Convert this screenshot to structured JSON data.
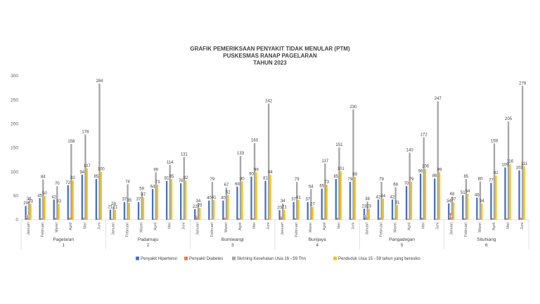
{
  "chart_data": {
    "type": "bar",
    "title_lines": [
      "GRAFIK PEMERIKSAAN PENYAKIT TIDAK MENULAR (PTM)",
      "PUSKESMAS RANAP PAGELARAN",
      "TAHUN 2023"
    ],
    "xlabel": "",
    "ylabel": "",
    "ylim": [
      0,
      300
    ],
    "yticks": [
      0,
      50,
      100,
      150,
      200,
      250,
      300
    ],
    "grid": false,
    "legend_position": "bottom",
    "colors": [
      "#4472C4",
      "#ED7D31",
      "#A5A5A5",
      "#FFC000"
    ],
    "months": [
      "Januari",
      "Februari",
      "Maret",
      "April",
      "Mei",
      "Juni"
    ],
    "groups": [
      {
        "name": "Pagelaran",
        "number": "1"
      },
      {
        "name": "Padamaju",
        "number": "2"
      },
      {
        "name": "Bumiwangi",
        "number": "3"
      },
      {
        "name": "Bunijaya",
        "number": "4"
      },
      {
        "name": "Pangadegan",
        "number": "5"
      },
      {
        "name": "Situhiang",
        "number": "6"
      }
    ],
    "series": [
      {
        "name": "Penyakit Hipertensi",
        "values": [
          29,
          45,
          42,
          72,
          94,
          85,
          21,
          37,
          37,
          64,
          81,
          76,
          22,
          40,
          40,
          69,
          90,
          81,
          20,
          37,
          37,
          65,
          85,
          79,
          23,
          42,
          42,
          70,
          96,
          86,
          34,
          51,
          46,
          77,
          109,
          103
        ]
      },
      {
        "name": "Penyakit Diabetes",
        "values": [
          10,
          3,
          4,
          4,
          4,
          2,
          2,
          2,
          2,
          2,
          1,
          2,
          9,
          1,
          4,
          3,
          3,
          2,
          8,
          3,
          1,
          3,
          4,
          2,
          10,
          4,
          3,
          2,
          4,
          2,
          14,
          3,
          2,
          3,
          3,
          4
        ]
      },
      {
        "name": "Skrining  Kesehatan Usia 16 - 59 Thn",
        "values": [
          38,
          84,
          70,
          158,
          178,
          284,
          28,
          74,
          59,
          99,
          114,
          131,
          34,
          79,
          67,
          133,
          160,
          242,
          34,
          79,
          64,
          117,
          151,
          230,
          38,
          79,
          68,
          140,
          172,
          247,
          48,
          85,
          80,
          159,
          205,
          279
        ]
      },
      {
        "name": "Penduduk Usia 15 - 59 tahun yang beresiko",
        "values": [
          33,
          50,
          33,
          82,
          107,
          100,
          21,
          35,
          47,
          73,
          85,
          82,
          25,
          41,
          52,
          80,
          99,
          94,
          21,
          41,
          27,
          73,
          101,
          89,
          23,
          44,
          31,
          79,
          106,
          99,
          37,
          54,
          34,
          92,
          116,
          111
        ]
      }
    ]
  }
}
